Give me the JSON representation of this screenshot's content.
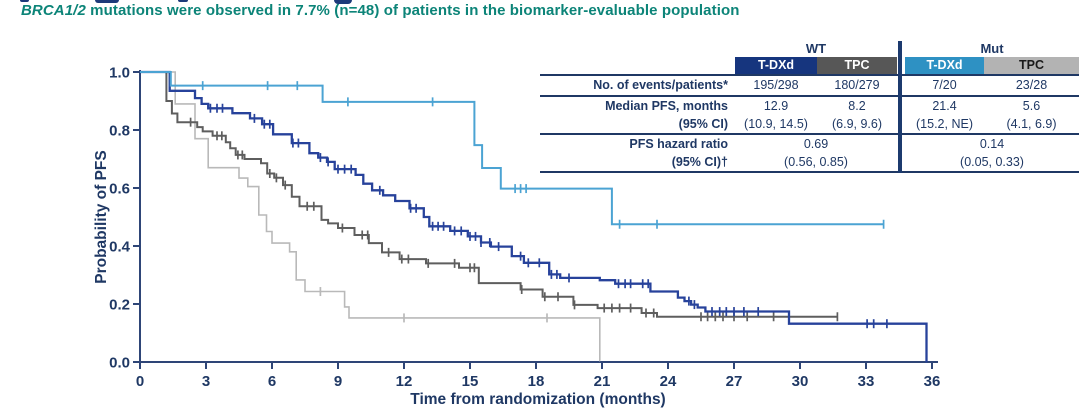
{
  "subtitle": {
    "italic": "BRCA1/2",
    "rest": " mutations were observed in 7.7% (n=48) of patients in the biomarker-evaluable population"
  },
  "table": {
    "group_headers": [
      {
        "label": "WT"
      },
      {
        "label": "Mut"
      }
    ],
    "col_headers": [
      {
        "label": "T-DXd",
        "bg": "#16357e",
        "fg": "#ffffff"
      },
      {
        "label": "TPC",
        "bg": "#575757",
        "fg": "#ffffff"
      },
      {
        "label": "T-DXd",
        "bg": "#2e91c3",
        "fg": "#ffffff"
      },
      {
        "label": "TPC",
        "bg": "#b3b3b3",
        "fg": "#1a1a1a"
      }
    ],
    "rows": {
      "events": {
        "label": "No. of events/patients*",
        "values": [
          "195/298",
          "180/279",
          "7/20",
          "23/28"
        ]
      },
      "median": {
        "label": "Median PFS, months",
        "label2": "(95% CI)",
        "values": [
          "12.9",
          "8.2",
          "21.4",
          "5.6"
        ],
        "ci": [
          "(10.9, 14.5)",
          "(6.9, 9.6)",
          "(15.2, NE)",
          "(4.1, 6.9)"
        ]
      },
      "hr": {
        "label": "PFS hazard ratio",
        "label2": "(95% CI)†",
        "values": [
          "0.69",
          "0.14"
        ],
        "ci": [
          "(0.56, 0.85)",
          "(0.05, 0.33)"
        ]
      }
    }
  },
  "colors": {
    "teal_heading": "#0c8478",
    "navy_text": "#1f3864",
    "axis": "#2e4577",
    "table_rule": "#1f3864",
    "table_divider": "#1c3a6e"
  },
  "chart_data": {
    "type": "line",
    "subtype": "kaplan-meier-step",
    "xlabel": "Time from randomization (months)",
    "ylabel": "Probability of PFS",
    "xlim": [
      0,
      36
    ],
    "ylim": [
      0.0,
      1.0
    ],
    "grid": false,
    "xticks": [
      {
        "v": 0,
        "label": "0"
      },
      {
        "v": 3,
        "label": "3"
      },
      {
        "v": 6,
        "label": "6"
      },
      {
        "v": 9,
        "label": "9"
      },
      {
        "v": 12,
        "label": "12"
      },
      {
        "v": 15,
        "label": "15"
      },
      {
        "v": 18,
        "label": "18"
      },
      {
        "v": 21,
        "label": "21"
      },
      {
        "v": 24,
        "label": "24"
      },
      {
        "v": 27,
        "label": "27"
      },
      {
        "v": 30,
        "label": "30"
      },
      {
        "v": 33,
        "label": "33"
      },
      {
        "v": 36,
        "label": "36"
      }
    ],
    "yticks": [
      {
        "v": 1.0,
        "label": "1.0"
      },
      {
        "v": 0.8,
        "label": "0.8"
      },
      {
        "v": 0.6,
        "label": "0.6"
      },
      {
        "v": 0.4,
        "label": "0.4"
      },
      {
        "v": 0.2,
        "label": "0.2"
      },
      {
        "v": 0.0,
        "label": "0.0"
      }
    ],
    "series": [
      {
        "name": "WT T-DXd",
        "color": "#27429b",
        "width": 2.3,
        "z": 3,
        "end": 35.78,
        "steps": [
          [
            0,
            1.0
          ],
          [
            1.35,
            0.935
          ],
          [
            2.5,
            0.91
          ],
          [
            2.8,
            0.89
          ],
          [
            3.1,
            0.875
          ],
          [
            4.2,
            0.858
          ],
          [
            5.0,
            0.84
          ],
          [
            5.55,
            0.82
          ],
          [
            6.05,
            0.785
          ],
          [
            6.9,
            0.755
          ],
          [
            7.7,
            0.72
          ],
          [
            8.1,
            0.705
          ],
          [
            8.5,
            0.69
          ],
          [
            8.85,
            0.665
          ],
          [
            9.8,
            0.645
          ],
          [
            10.15,
            0.615
          ],
          [
            10.55,
            0.592
          ],
          [
            11.05,
            0.575
          ],
          [
            11.6,
            0.555
          ],
          [
            12.25,
            0.53
          ],
          [
            12.9,
            0.5
          ],
          [
            13.15,
            0.468
          ],
          [
            14.1,
            0.452
          ],
          [
            14.9,
            0.433
          ],
          [
            15.5,
            0.412
          ],
          [
            15.95,
            0.398
          ],
          [
            16.9,
            0.365
          ],
          [
            17.45,
            0.342
          ],
          [
            18.6,
            0.302
          ],
          [
            19.1,
            0.29
          ],
          [
            20.9,
            0.282
          ],
          [
            21.6,
            0.27
          ],
          [
            23.2,
            0.243
          ],
          [
            24.45,
            0.222
          ],
          [
            24.75,
            0.21
          ],
          [
            25.05,
            0.198
          ],
          [
            25.35,
            0.188
          ],
          [
            25.7,
            0.174
          ],
          [
            29.5,
            0.132
          ],
          [
            35.75,
            0.002
          ]
        ],
        "censors": [
          3.2,
          3.5,
          3.75,
          5.2,
          5.65,
          5.9,
          6.95,
          7.2,
          8.2,
          8.55,
          9.0,
          9.3,
          9.6,
          10.9,
          12.3,
          12.55,
          13.3,
          13.55,
          13.8,
          14.3,
          14.6,
          15.0,
          15.25,
          15.5,
          15.9,
          16.3,
          17.3,
          17.65,
          18.15,
          18.7,
          18.95,
          19.5,
          21.75,
          22.05,
          22.3,
          22.85,
          23.1,
          24.95,
          25.2,
          26.0,
          26.35,
          26.65,
          27.0,
          27.45,
          28.1,
          33.05,
          33.35,
          33.95
        ]
      },
      {
        "name": "WT TPC",
        "color": "#5e5e5e",
        "width": 2.0,
        "z": 2,
        "end": 31.7,
        "steps": [
          [
            0,
            1.0
          ],
          [
            1.2,
            0.9
          ],
          [
            1.45,
            0.857
          ],
          [
            1.7,
            0.827
          ],
          [
            2.6,
            0.81
          ],
          [
            2.85,
            0.795
          ],
          [
            3.3,
            0.78
          ],
          [
            3.9,
            0.758
          ],
          [
            4.1,
            0.737
          ],
          [
            4.35,
            0.714
          ],
          [
            4.75,
            0.7
          ],
          [
            5.5,
            0.685
          ],
          [
            5.78,
            0.65
          ],
          [
            6.1,
            0.635
          ],
          [
            6.5,
            0.61
          ],
          [
            6.9,
            0.57
          ],
          [
            7.25,
            0.537
          ],
          [
            8.25,
            0.49
          ],
          [
            8.55,
            0.478
          ],
          [
            9.0,
            0.462
          ],
          [
            9.75,
            0.438
          ],
          [
            10.4,
            0.41
          ],
          [
            11.0,
            0.378
          ],
          [
            11.8,
            0.355
          ],
          [
            13.0,
            0.34
          ],
          [
            14.5,
            0.325
          ],
          [
            15.4,
            0.272
          ],
          [
            17.3,
            0.25
          ],
          [
            18.3,
            0.225
          ],
          [
            19.7,
            0.197
          ],
          [
            20.8,
            0.186
          ],
          [
            22.8,
            0.169
          ],
          [
            23.5,
            0.156
          ]
        ],
        "censors": [
          2.3,
          3.5,
          3.72,
          4.45,
          4.65,
          5.9,
          6.2,
          6.6,
          7.6,
          7.9,
          9.2,
          10.1,
          10.35,
          11.3,
          11.9,
          12.2,
          13.1,
          14.3,
          15.0,
          15.2,
          17.35,
          18.4,
          19.0,
          19.75,
          21.1,
          21.45,
          21.8,
          22.3,
          23.0,
          23.35,
          25.5,
          25.8,
          26.15,
          26.5,
          27.0,
          27.6,
          28.8,
          31.7
        ]
      },
      {
        "name": "Mut T-DXd",
        "color": "#4ba3d3",
        "width": 2.0,
        "z": 4,
        "end": 33.8,
        "steps": [
          [
            0,
            1.0
          ],
          [
            1.4,
            0.953
          ],
          [
            8.3,
            0.897
          ],
          [
            15.2,
            0.748
          ],
          [
            15.55,
            0.669
          ],
          [
            16.4,
            0.598
          ],
          [
            21.45,
            0.475
          ]
        ],
        "censors": [
          2.85,
          5.8,
          7.15,
          9.45,
          13.3,
          17.05,
          17.3,
          17.55,
          21.8,
          23.5,
          33.8
        ]
      },
      {
        "name": "Mut TPC",
        "color": "#b9b9b9",
        "width": 1.6,
        "z": 1,
        "end": 20.92,
        "steps": [
          [
            0,
            1.0
          ],
          [
            1.6,
            0.89
          ],
          [
            2.5,
            0.77
          ],
          [
            3.1,
            0.67
          ],
          [
            4.5,
            0.634
          ],
          [
            4.9,
            0.605
          ],
          [
            5.4,
            0.507
          ],
          [
            5.75,
            0.45
          ],
          [
            6.0,
            0.41
          ],
          [
            6.8,
            0.38
          ],
          [
            7.1,
            0.283
          ],
          [
            7.5,
            0.243
          ],
          [
            9.3,
            0.19
          ],
          [
            9.5,
            0.152
          ],
          [
            20.9,
            0.005
          ]
        ],
        "censors": [
          8.2,
          12.0,
          18.5
        ]
      }
    ]
  }
}
